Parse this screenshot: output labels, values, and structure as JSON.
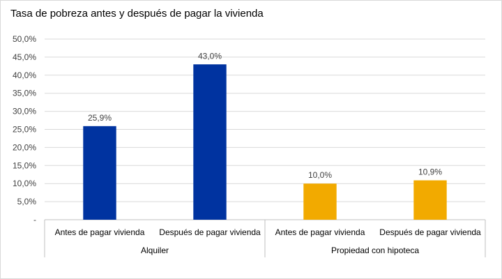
{
  "chart_data": {
    "type": "bar",
    "title": "Tasa de pobreza antes y después de pagar la vivienda",
    "ylim": [
      0,
      50
    ],
    "yticks": [
      "-",
      "5,0%",
      "10,0%",
      "15,0%",
      "20,0%",
      "25,0%",
      "30,0%",
      "35,0%",
      "40,0%",
      "45,0%",
      "50,0%"
    ],
    "groups": [
      {
        "label": "Alquiler",
        "color": "#0033a0",
        "categories": [
          "Antes de pagar vivienda",
          "Después de pagar vivienda"
        ],
        "values": [
          25.9,
          43.0
        ],
        "data_labels": [
          "25,9%",
          "43,0%"
        ]
      },
      {
        "label": "Propiedad con hipoteca",
        "color": "#f2aa00",
        "categories": [
          "Antes de pagar vivienda",
          "Después de pagar vivienda"
        ],
        "values": [
          10.0,
          10.9
        ],
        "data_labels": [
          "10,0%",
          "10,9%"
        ]
      }
    ],
    "grid": true,
    "legend": "none"
  }
}
